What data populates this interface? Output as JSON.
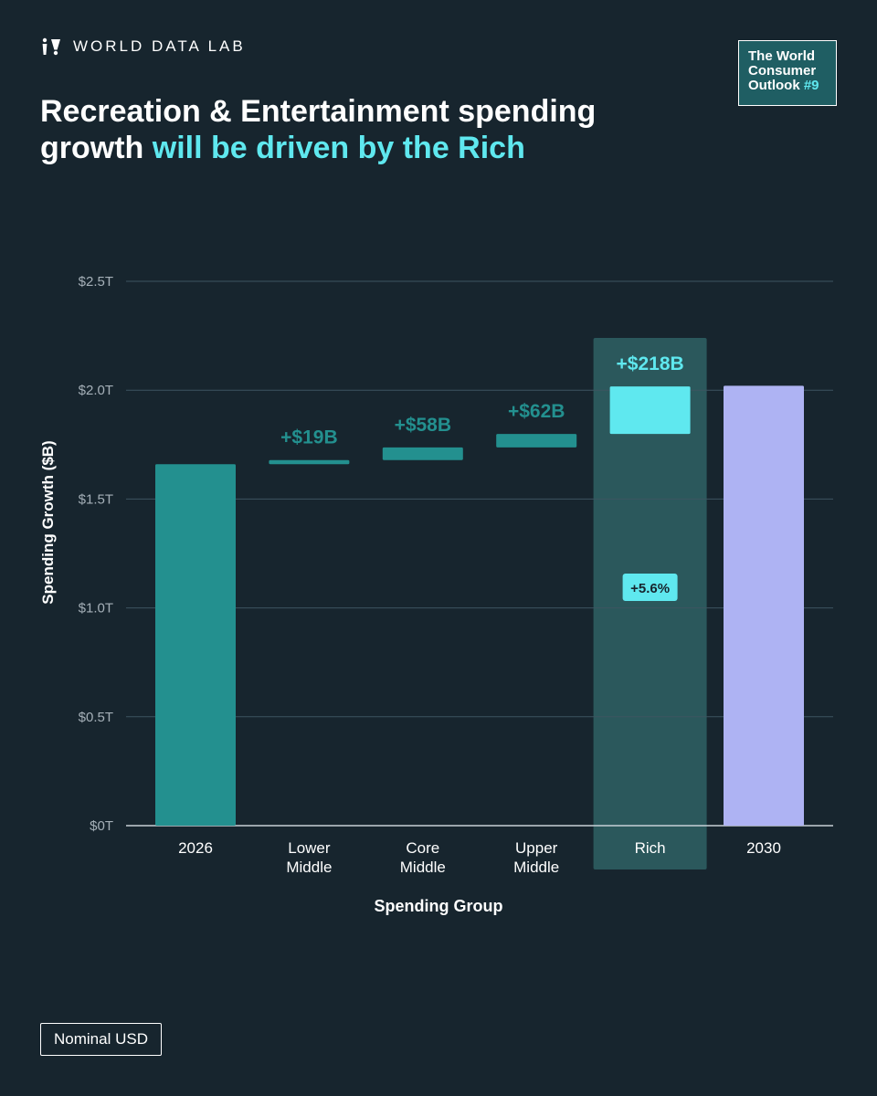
{
  "brand": {
    "name": "WORLD DATA LAB",
    "logo_icon": "people-logo-icon"
  },
  "badge": {
    "line1": "The World",
    "line2": "Consumer",
    "line3_text": "Outlook ",
    "line3_hash": "#9"
  },
  "title": {
    "part1": "Recreation & Entertainment spending growth ",
    "part2": "will be driven by the Rich"
  },
  "footnote": "Nominal USD",
  "colors": {
    "background": "#17252e",
    "teal": "#23908f",
    "cyan": "#5fe8ef",
    "lavender": "#aeb3f3",
    "highlight": "#2b585c",
    "grid": "#3d5560"
  },
  "chart_data": {
    "type": "bar",
    "subtype": "waterfall",
    "xlabel": "Spending Group",
    "ylabel": "Spending Growth ($B)",
    "ylim": [
      0,
      2.5
    ],
    "yticks": [
      0,
      0.5,
      1.0,
      1.5,
      2.0,
      2.5
    ],
    "ytick_labels": [
      "$0T",
      "$0.5T",
      "$1.0T",
      "$1.5T",
      "$2.0T",
      "$2.5T"
    ],
    "grid": true,
    "categories": [
      "2026",
      "Lower\nMiddle",
      "Core\nMiddle",
      "Upper\nMiddle",
      "Rich",
      "2030"
    ],
    "bars": [
      {
        "kind": "total",
        "base": 0,
        "value": 1.66,
        "label": ""
      },
      {
        "kind": "delta",
        "base": 1.66,
        "value": 0.019,
        "label": "+$19B"
      },
      {
        "kind": "delta",
        "base": 1.679,
        "value": 0.058,
        "label": "+$58B"
      },
      {
        "kind": "delta",
        "base": 1.737,
        "value": 0.062,
        "label": "+$62B"
      },
      {
        "kind": "delta",
        "base": 1.799,
        "value": 0.218,
        "label": "+$218B"
      },
      {
        "kind": "total",
        "base": 0,
        "value": 2.02,
        "label": ""
      }
    ],
    "highlight_category": "Rich",
    "annotation": "+5.6%"
  }
}
